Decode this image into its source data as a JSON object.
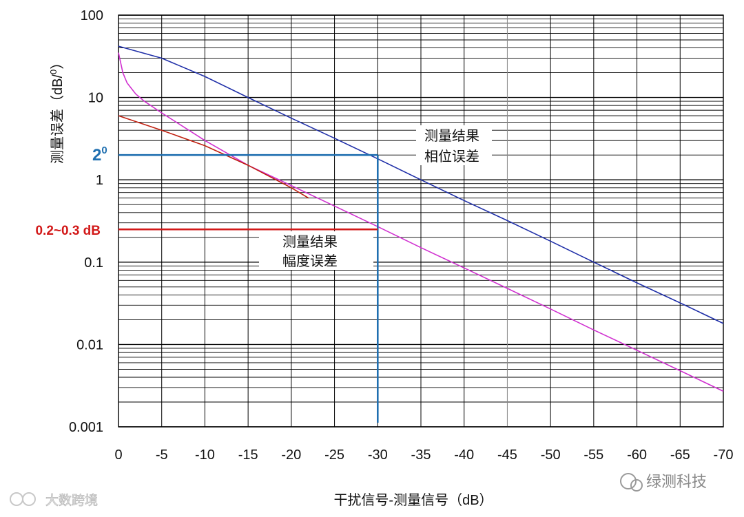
{
  "chart_data": {
    "type": "line",
    "xlabel": "干扰信号-测量信号（dB）",
    "ylabel_parts": [
      "测量误差（dB/",
      "0",
      "）"
    ],
    "x_ticks": [
      "0",
      "-5",
      "-10",
      "-15",
      "-20",
      "-25",
      "-30",
      "-35",
      "-40",
      "-45",
      "-50",
      "-55",
      "-60",
      "-65",
      "-70"
    ],
    "x_range": [
      0,
      -70
    ],
    "y_ticks": [
      "100",
      "10",
      "1",
      "0.1",
      "0.01",
      "0.001"
    ],
    "y_range": [
      0.001,
      100
    ],
    "y_scale": "log",
    "grid": true,
    "series": [
      {
        "name": "测量结果相位误差",
        "color": "#1f2fa8",
        "x": [
          0,
          -5,
          -10,
          -15,
          -20,
          -25,
          -30,
          -35,
          -40,
          -45,
          -50,
          -55,
          -60,
          -65,
          -70
        ],
        "y": [
          42,
          30,
          18,
          10,
          5.6,
          3.2,
          1.8,
          1.0,
          0.56,
          0.32,
          0.18,
          0.1,
          0.056,
          0.032,
          0.018
        ]
      },
      {
        "name": "测量结果幅度误差",
        "color": "#d030d0",
        "x": [
          0,
          -0.5,
          -1,
          -2,
          -3,
          -5,
          -10,
          -15,
          -20,
          -25,
          -30,
          -35,
          -40,
          -45,
          -50,
          -55,
          -60,
          -65,
          -70
        ],
        "y": [
          35,
          20,
          15,
          11,
          9,
          6.5,
          3.0,
          1.5,
          0.85,
          0.48,
          0.27,
          0.15,
          0.085,
          0.048,
          0.027,
          0.015,
          0.0085,
          0.0048,
          0.0027
        ]
      },
      {
        "name": "",
        "color": "#c02010",
        "x": [
          0,
          -5,
          -10,
          -15,
          -20,
          -22
        ],
        "y": [
          6.0,
          4.0,
          2.6,
          1.5,
          0.8,
          0.6
        ]
      }
    ],
    "annotations": [
      {
        "base": "2",
        "sup": "0",
        "color": "#1f6fb0",
        "y": 2,
        "x": -30
      },
      {
        "text": "0.2~0.3 dB",
        "color": "#d21818",
        "y": 0.25,
        "x": -30
      }
    ],
    "labels": [
      {
        "lines": [
          "测量结果",
          "相位误差"
        ]
      },
      {
        "lines": [
          "测量结果",
          "幅度误差"
        ]
      }
    ]
  },
  "watermarks": {
    "right": "绿测科技",
    "left": "大数跨境"
  }
}
